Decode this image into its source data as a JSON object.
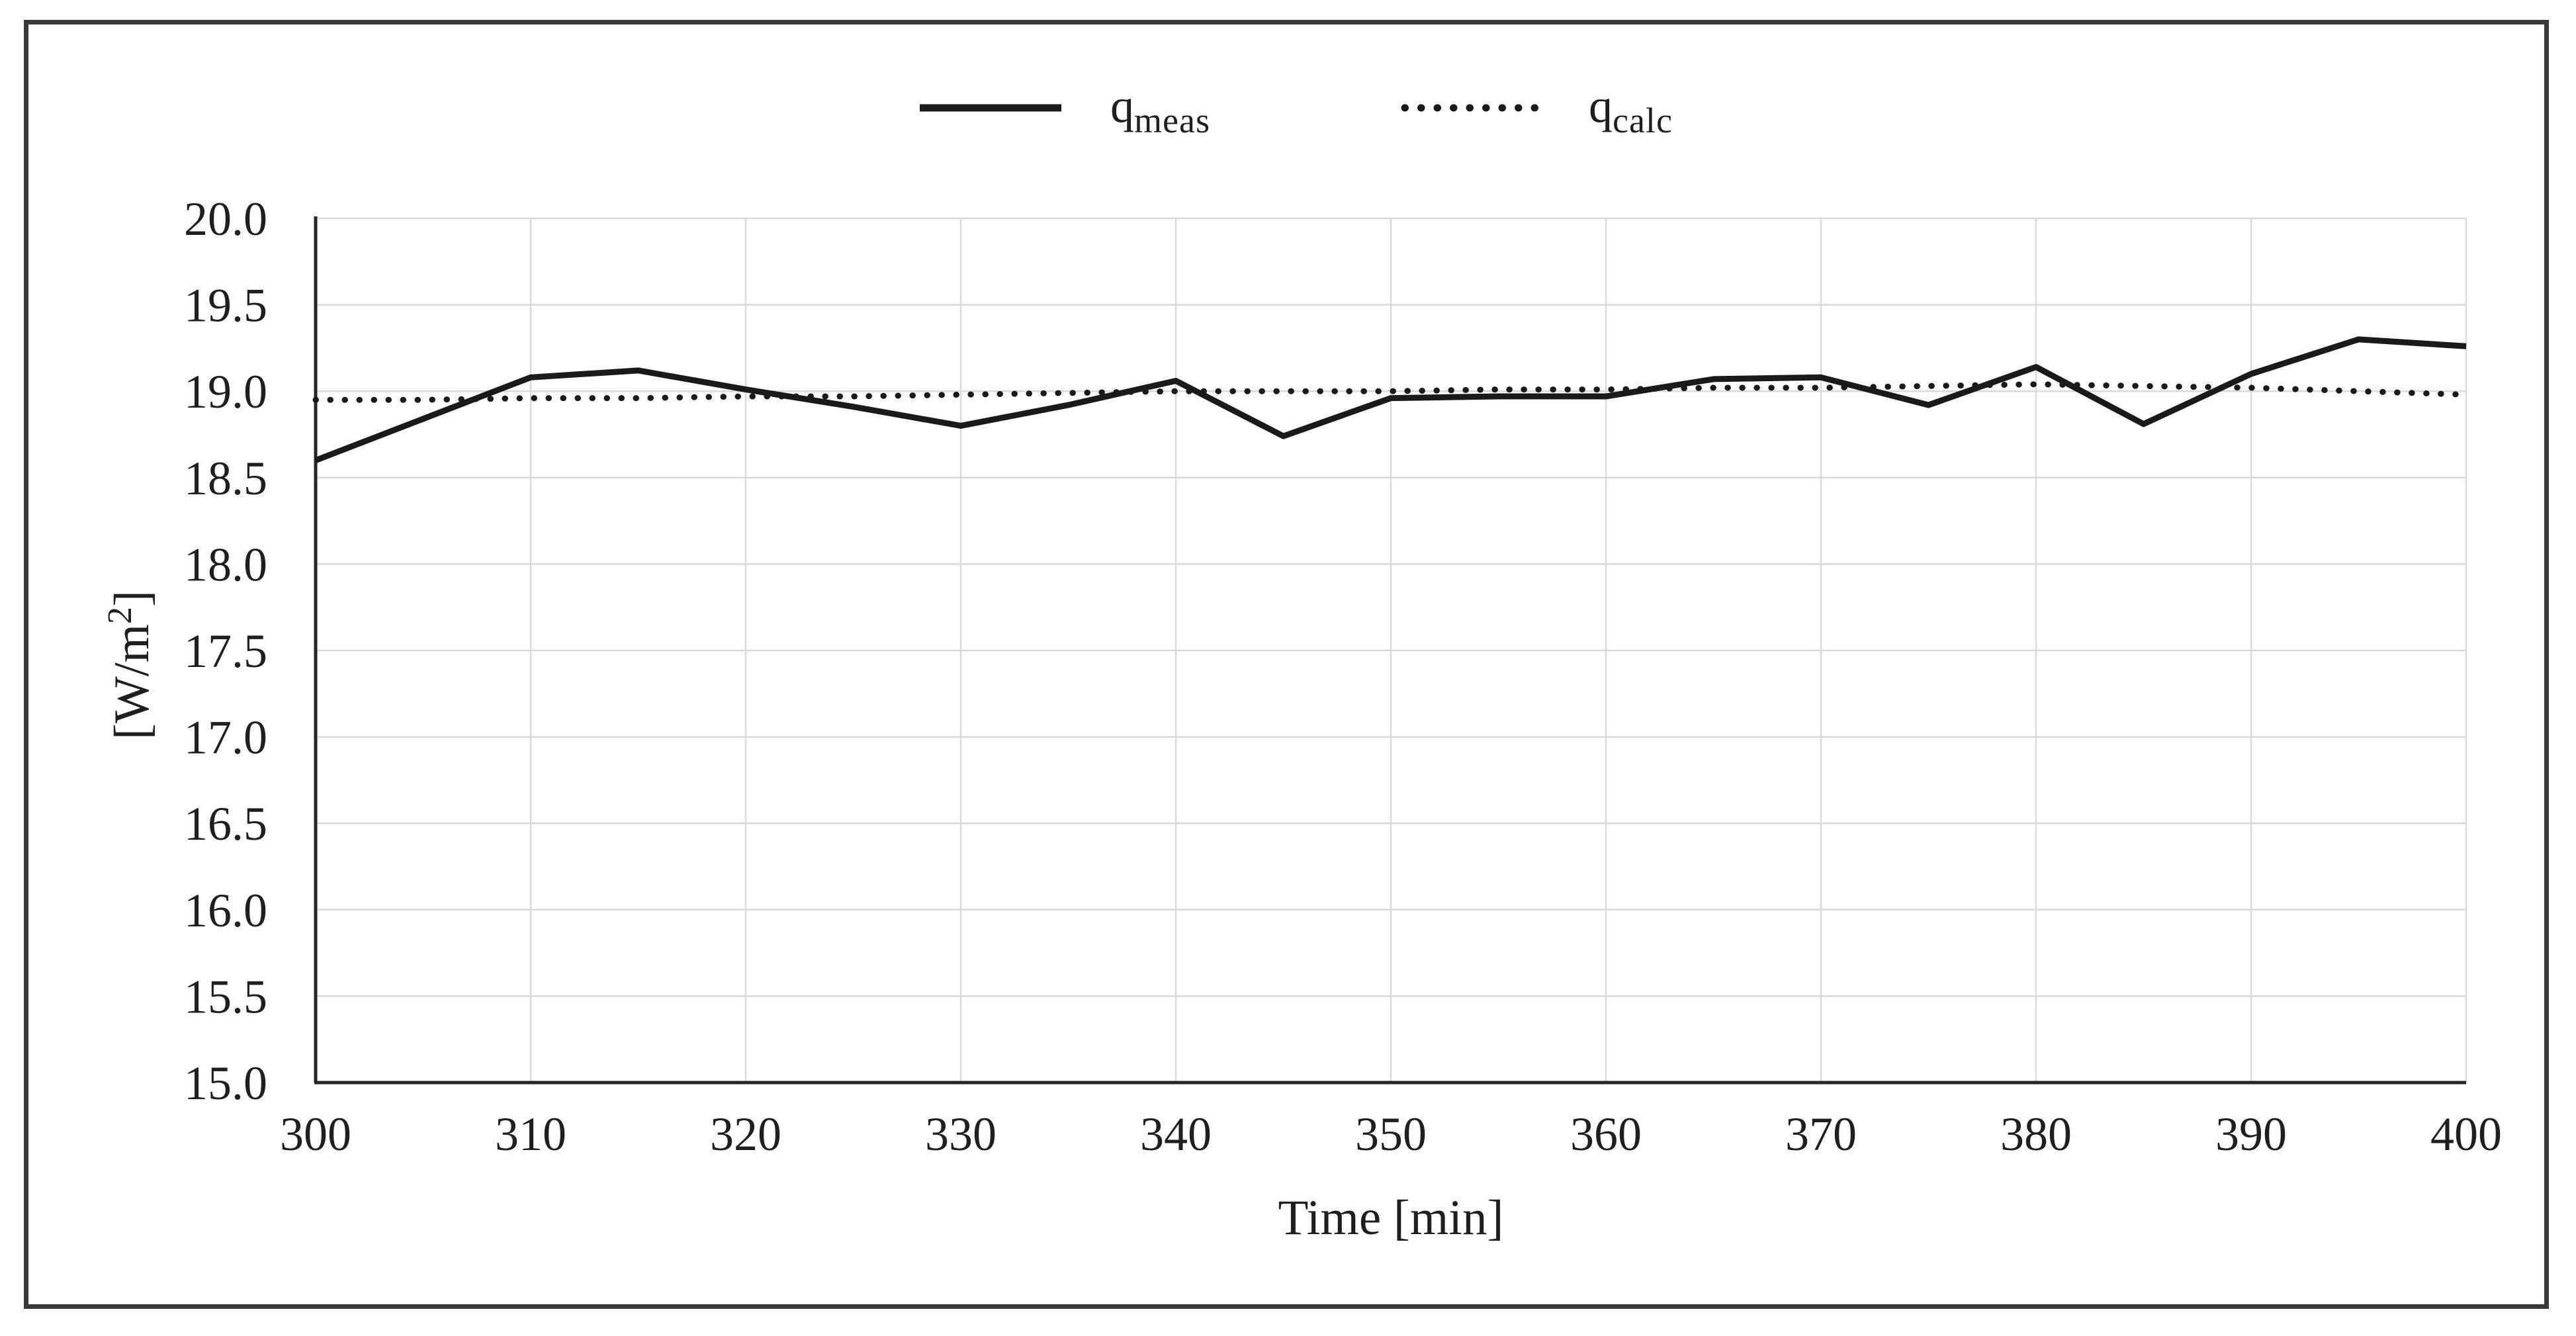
{
  "figure": {
    "background": "#ffffff",
    "border_color": "#3a3a3a"
  },
  "legend": {
    "items": [
      {
        "name": "q_meas",
        "base": "q",
        "sub": "meas",
        "style": "solid"
      },
      {
        "name": "q_calc",
        "base": "q",
        "sub": "calc",
        "style": "dotted"
      }
    ]
  },
  "chart_data": {
    "type": "line",
    "title": "",
    "xlabel": "Time [min]",
    "ylabel": "[W/m²]",
    "ylabel_parts": {
      "pre": "[W/m",
      "sup": "2",
      "post": "]"
    },
    "xlim": [
      300,
      400
    ],
    "ylim": [
      15.0,
      20.0
    ],
    "grid": true,
    "legend_position": "top",
    "x_ticks": [
      "300",
      "310",
      "320",
      "330",
      "340",
      "350",
      "360",
      "370",
      "380",
      "390",
      "400"
    ],
    "y_ticks": [
      "20.0",
      "19.5",
      "19.0",
      "18.5",
      "18.0",
      "17.5",
      "17.0",
      "16.5",
      "16.0",
      "15.5",
      "15.0"
    ],
    "x": [
      300,
      305,
      310,
      315,
      320,
      325,
      330,
      335,
      340,
      345,
      350,
      355,
      360,
      365,
      370,
      375,
      380,
      385,
      390,
      395,
      400
    ],
    "series": [
      {
        "name": "q_meas",
        "style": "solid",
        "values": [
          18.6,
          18.84,
          19.08,
          19.12,
          19.01,
          18.91,
          18.8,
          18.92,
          19.06,
          18.74,
          18.96,
          18.97,
          18.97,
          19.07,
          19.08,
          18.92,
          19.14,
          18.81,
          19.1,
          19.3,
          19.26
        ]
      },
      {
        "name": "q_calc",
        "style": "dotted",
        "values": [
          18.95,
          18.95,
          18.96,
          18.96,
          18.97,
          18.97,
          18.98,
          18.99,
          19.0,
          19.0,
          19.0,
          19.01,
          19.01,
          19.02,
          19.02,
          19.03,
          19.04,
          19.03,
          19.02,
          19.0,
          18.98
        ]
      }
    ],
    "colors": {
      "line": "#1a1a1a",
      "grid": "#d9d9d9",
      "axis": "#262626",
      "tick_text": "#1f1f1f"
    }
  }
}
